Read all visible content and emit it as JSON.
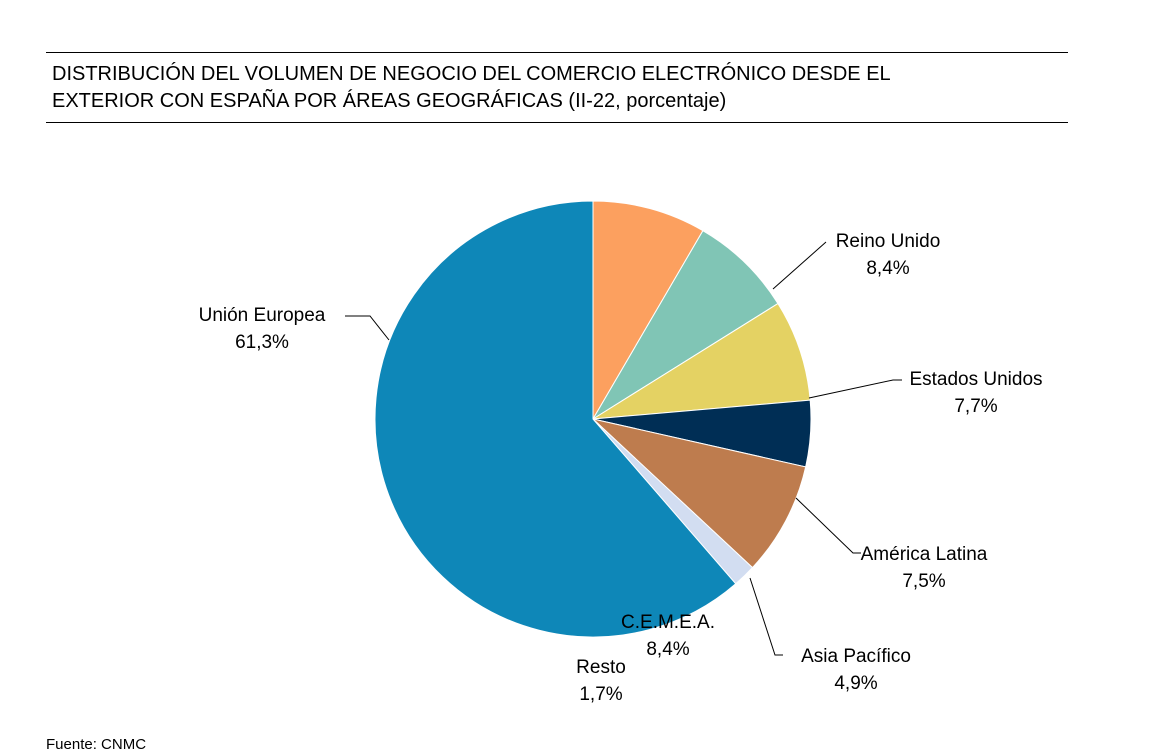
{
  "title_lines": [
    "DISTRIBUCIÓN DEL VOLUMEN DE NEGOCIO DEL COMERCIO ELECTRÓNICO DESDE EL",
    "EXTERIOR CON ESPAÑA POR ÁREAS GEOGRÁFICAS (II-22, porcentaje)"
  ],
  "source": "Fuente: CNMC",
  "chart_data": {
    "type": "pie",
    "title": "DISTRIBUCIÓN DEL VOLUMEN DE NEGOCIO DEL COMERCIO ELECTRÓNICO DESDE EL EXTERIOR CON ESPAÑA POR ÁREAS GEOGRÁFICAS (II-22, porcentaje)",
    "start": "12 o'clock",
    "direction": "clockwise",
    "legend": "none (leader-line labels)",
    "slices": [
      {
        "label": "Reino Unido",
        "value": 8.4,
        "display": "8,4%",
        "color": "#FCA05F"
      },
      {
        "label": "Estados Unidos",
        "value": 7.7,
        "display": "7,7%",
        "color": "#80C5B5"
      },
      {
        "label": "América Latina",
        "value": 7.5,
        "display": "7,5%",
        "color": "#E4D263"
      },
      {
        "label": "Asia Pacífico",
        "value": 4.9,
        "display": "4,9%",
        "color": "#002E55"
      },
      {
        "label": "C.E.M.E.A.",
        "value": 8.4,
        "display": "8,4%",
        "color": "#BE7C4E"
      },
      {
        "label": "Resto",
        "value": 1.7,
        "display": "1,7%",
        "color": "#D2DDF1"
      },
      {
        "label": "Unión Europea",
        "value": 61.3,
        "display": "61,3%",
        "color": "#0E87B8"
      }
    ]
  }
}
